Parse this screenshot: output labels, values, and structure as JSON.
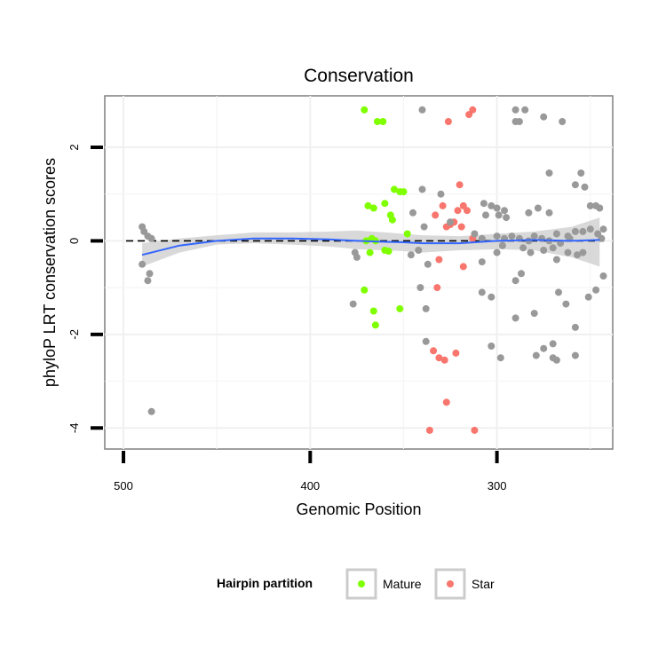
{
  "chart_data": {
    "type": "scatter",
    "title": "Conservation",
    "xlabel": "Genomic Position",
    "ylabel": "phyloP LRT conservation scores",
    "x_reversed": true,
    "xlim": [
      510,
      238
    ],
    "ylim": [
      -4.45,
      3.1
    ],
    "x_ticks": [
      500,
      400,
      300
    ],
    "y_ticks": [
      2,
      0,
      -2,
      -4
    ],
    "reference_line": {
      "y": 0,
      "style": "dashed"
    },
    "grid": true,
    "legend": {
      "position": "bottom",
      "title": "Hairpin partition",
      "entries": [
        {
          "label": "Mature",
          "color": "#7fff00"
        },
        {
          "label": "Star",
          "color": "#f8766d"
        }
      ]
    },
    "colors": {
      "other": "#999999",
      "mature": "#7fff00",
      "star": "#f8766d",
      "smooth": "#3366ff",
      "ribbon": "#cccccc"
    },
    "smooth": {
      "x": [
        490,
        470,
        450,
        430,
        410,
        390,
        375,
        360,
        350,
        340,
        320,
        300,
        280,
        260,
        245
      ],
      "y": [
        -0.3,
        -0.1,
        0.0,
        0.05,
        0.05,
        0.03,
        0.0,
        -0.02,
        -0.03,
        -0.05,
        -0.05,
        0.0,
        0.02,
        0.0,
        0.02
      ],
      "lower": [
        -0.55,
        -0.25,
        -0.08,
        -0.05,
        -0.08,
        -0.12,
        -0.18,
        -0.2,
        -0.22,
        -0.25,
        -0.2,
        -0.18,
        -0.2,
        -0.35,
        -0.55
      ],
      "upper": [
        -0.05,
        0.05,
        0.12,
        0.18,
        0.18,
        0.2,
        0.22,
        0.18,
        0.15,
        0.12,
        0.1,
        0.15,
        0.2,
        0.3,
        0.5
      ]
    },
    "series": [
      {
        "name": "Mature",
        "color": "#7fff00",
        "points": [
          [
            371,
            2.8
          ],
          [
            364,
            2.55
          ],
          [
            361,
            2.55
          ],
          [
            369,
            0.75
          ],
          [
            366,
            0.7
          ],
          [
            355,
            1.1
          ],
          [
            352,
            1.05
          ],
          [
            350,
            1.05
          ],
          [
            360,
            0.8
          ],
          [
            357,
            0.55
          ],
          [
            356,
            0.45
          ],
          [
            367,
            0.05
          ],
          [
            365,
            0.0
          ],
          [
            370,
            0.0
          ],
          [
            368,
            -0.25
          ],
          [
            360,
            -0.2
          ],
          [
            358,
            -0.22
          ],
          [
            348,
            0.15
          ],
          [
            371,
            -1.05
          ],
          [
            366,
            -1.5
          ],
          [
            365,
            -1.8
          ],
          [
            352,
            -1.45
          ]
        ]
      },
      {
        "name": "Star",
        "color": "#f8766d",
        "points": [
          [
            313,
            2.8
          ],
          [
            315,
            2.7
          ],
          [
            326,
            2.55
          ],
          [
            320,
            1.2
          ],
          [
            329,
            0.75
          ],
          [
            318,
            0.75
          ],
          [
            316,
            0.65
          ],
          [
            321,
            0.65
          ],
          [
            333,
            0.55
          ],
          [
            323,
            0.4
          ],
          [
            325,
            0.35
          ],
          [
            327,
            0.3
          ],
          [
            319,
            0.3
          ],
          [
            313,
            0.05
          ],
          [
            331,
            -0.4
          ],
          [
            318,
            -0.55
          ],
          [
            332,
            -1.0
          ],
          [
            334,
            -2.35
          ],
          [
            331,
            -2.5
          ],
          [
            328,
            -2.55
          ],
          [
            322,
            -2.4
          ],
          [
            327,
            -3.45
          ],
          [
            336,
            -4.05
          ],
          [
            312,
            -4.05
          ]
        ]
      },
      {
        "name": "",
        "color": "#999999",
        "points": [
          [
            490,
            0.3
          ],
          [
            489,
            0.2
          ],
          [
            487,
            0.1
          ],
          [
            485,
            0.05
          ],
          [
            490,
            -0.5
          ],
          [
            487,
            -0.85
          ],
          [
            486,
            -0.7
          ],
          [
            485,
            -3.65
          ],
          [
            376,
            -0.25
          ],
          [
            375,
            -0.35
          ],
          [
            377,
            -1.35
          ],
          [
            340,
            2.8
          ],
          [
            290,
            2.8
          ],
          [
            285,
            2.8
          ],
          [
            275,
            2.65
          ],
          [
            265,
            2.55
          ],
          [
            290,
            2.55
          ],
          [
            288,
            2.55
          ],
          [
            272,
            1.45
          ],
          [
            255,
            1.45
          ],
          [
            258,
            1.2
          ],
          [
            253,
            1.15
          ],
          [
            340,
            1.1
          ],
          [
            330,
            1.0
          ],
          [
            307,
            0.8
          ],
          [
            303,
            0.75
          ],
          [
            300,
            0.7
          ],
          [
            296,
            0.65
          ],
          [
            283,
            0.6
          ],
          [
            278,
            0.7
          ],
          [
            272,
            0.6
          ],
          [
            250,
            0.75
          ],
          [
            247,
            0.75
          ],
          [
            245,
            0.7
          ],
          [
            299,
            0.55
          ],
          [
            295,
            0.5
          ],
          [
            306,
            0.55
          ],
          [
            345,
            0.6
          ],
          [
            339,
            0.3
          ],
          [
            325,
            0.4
          ],
          [
            312,
            0.15
          ],
          [
            308,
            0.05
          ],
          [
            300,
            0.1
          ],
          [
            296,
            0.05
          ],
          [
            292,
            0.1
          ],
          [
            288,
            0.05
          ],
          [
            283,
            0.0
          ],
          [
            280,
            0.1
          ],
          [
            276,
            0.05
          ],
          [
            272,
            0.0
          ],
          [
            268,
            0.15
          ],
          [
            262,
            0.1
          ],
          [
            258,
            0.2
          ],
          [
            254,
            0.2
          ],
          [
            250,
            0.25
          ],
          [
            246,
            0.15
          ],
          [
            243,
            0.25
          ],
          [
            261,
            0.05
          ],
          [
            266,
            -0.05
          ],
          [
            270,
            -0.15
          ],
          [
            275,
            -0.2
          ],
          [
            282,
            -0.25
          ],
          [
            286,
            -0.15
          ],
          [
            262,
            -0.25
          ],
          [
            257,
            -0.3
          ],
          [
            254,
            -0.25
          ],
          [
            342,
            -0.2
          ],
          [
            346,
            -0.3
          ],
          [
            337,
            -0.5
          ],
          [
            308,
            -0.45
          ],
          [
            300,
            -0.25
          ],
          [
            287,
            -0.7
          ],
          [
            290,
            -0.85
          ],
          [
            297,
            -0.1
          ],
          [
            268,
            -0.4
          ],
          [
            243,
            -0.75
          ],
          [
            247,
            -1.05
          ],
          [
            251,
            -1.2
          ],
          [
            267,
            -1.1
          ],
          [
            263,
            -1.35
          ],
          [
            280,
            -1.55
          ],
          [
            290,
            -1.65
          ],
          [
            258,
            -1.85
          ],
          [
            341,
            -1.0
          ],
          [
            338,
            -1.45
          ],
          [
            308,
            -1.1
          ],
          [
            303,
            -1.2
          ],
          [
            338,
            -2.15
          ],
          [
            303,
            -2.25
          ],
          [
            298,
            -2.5
          ],
          [
            270,
            -2.2
          ],
          [
            275,
            -2.3
          ],
          [
            279,
            -2.45
          ],
          [
            270,
            -2.5
          ],
          [
            268,
            -2.55
          ],
          [
            258,
            -2.45
          ],
          [
            244,
            0.05
          ]
        ]
      }
    ]
  }
}
